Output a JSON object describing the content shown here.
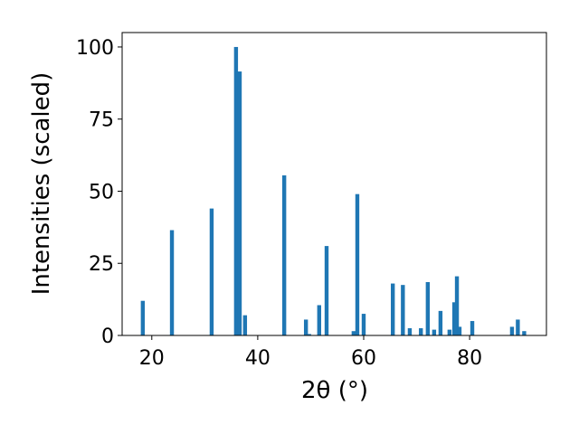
{
  "chart_data": {
    "type": "bar",
    "x_label": "2θ (°)",
    "y_label": "Intensities (scaled)",
    "x": [
      18.3,
      23.8,
      31.3,
      35.9,
      36.6,
      37.6,
      45.0,
      49.1,
      49.7,
      51.6,
      53.0,
      58.1,
      58.8,
      60.0,
      65.5,
      67.4,
      68.7,
      70.8,
      72.1,
      73.3,
      74.5,
      76.2,
      77.1,
      77.6,
      78.1,
      80.5,
      88.0,
      89.1,
      90.3
    ],
    "values": [
      12,
      36.5,
      44,
      100,
      91.5,
      7,
      55.5,
      5.5,
      0.5,
      10.5,
      31,
      1.5,
      49,
      7.5,
      18,
      17.5,
      2.5,
      2.5,
      18.5,
      2,
      8.5,
      2,
      11.5,
      20.5,
      3,
      5,
      3,
      5.5,
      1.5
    ],
    "color": "#1f77b4",
    "xlim": [
      14.4,
      94.5
    ],
    "xticks": [
      20,
      40,
      60,
      80
    ],
    "ylim": [
      0,
      105
    ],
    "yticks": [
      0,
      25,
      50,
      75,
      100
    ]
  }
}
